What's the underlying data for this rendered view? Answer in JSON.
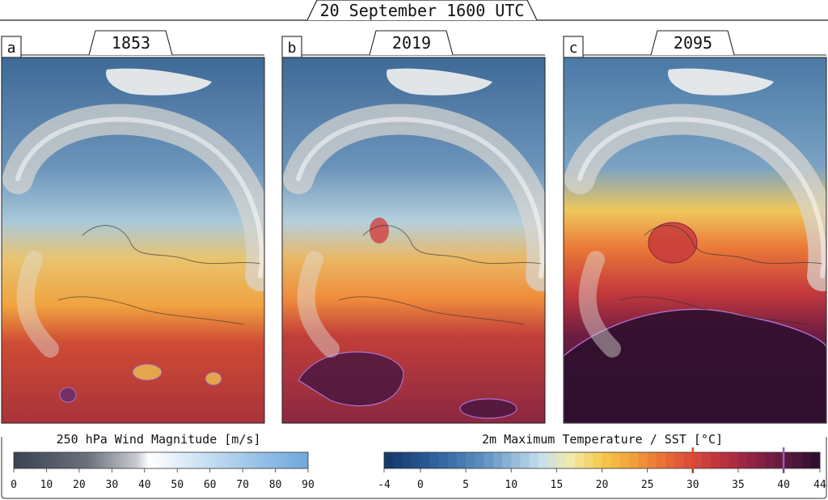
{
  "title": "20 September 1600 UTC",
  "panels": [
    {
      "letter": "a",
      "year": "1853"
    },
    {
      "letter": "b",
      "year": "2019"
    },
    {
      "letter": "c",
      "year": "2095"
    }
  ],
  "wind_bar": {
    "label": "250 hPa Wind Magnitude [m/s]",
    "min": 0,
    "max": 90,
    "ticks": [
      "0",
      "10",
      "20",
      "30",
      "40",
      "50",
      "60",
      "70",
      "80",
      "90"
    ],
    "colors": [
      "#3a4250",
      "#5b6370",
      "#858b94",
      "#b0b4ba",
      "#ffffff",
      "#d6e8f6",
      "#a9cdec",
      "#86b8e4",
      "#6ea8de"
    ]
  },
  "temp_bar": {
    "label": "2m Maximum Temperature / SST [°C]",
    "min": -4,
    "max": 44,
    "ticks": [
      "-4",
      "0",
      "5",
      "10",
      "15",
      "20",
      "25",
      "30",
      "35",
      "40",
      "44"
    ],
    "tick_values": [
      -4,
      0,
      5,
      10,
      15,
      20,
      25,
      30,
      35,
      40,
      44
    ],
    "markers": [
      {
        "value": 30,
        "color": "#e8491d"
      },
      {
        "value": 40,
        "color": "#9b59b6"
      }
    ],
    "colors": [
      "#163a6b",
      "#24538d",
      "#3a6fa8",
      "#5a8cc0",
      "#8db6d8",
      "#c5dfec",
      "#f2e9a8",
      "#f5c94a",
      "#f2a03a",
      "#ea7035",
      "#d84a3a",
      "#b8303e",
      "#8e2344",
      "#5e1a3e",
      "#2e0f2e"
    ]
  }
}
